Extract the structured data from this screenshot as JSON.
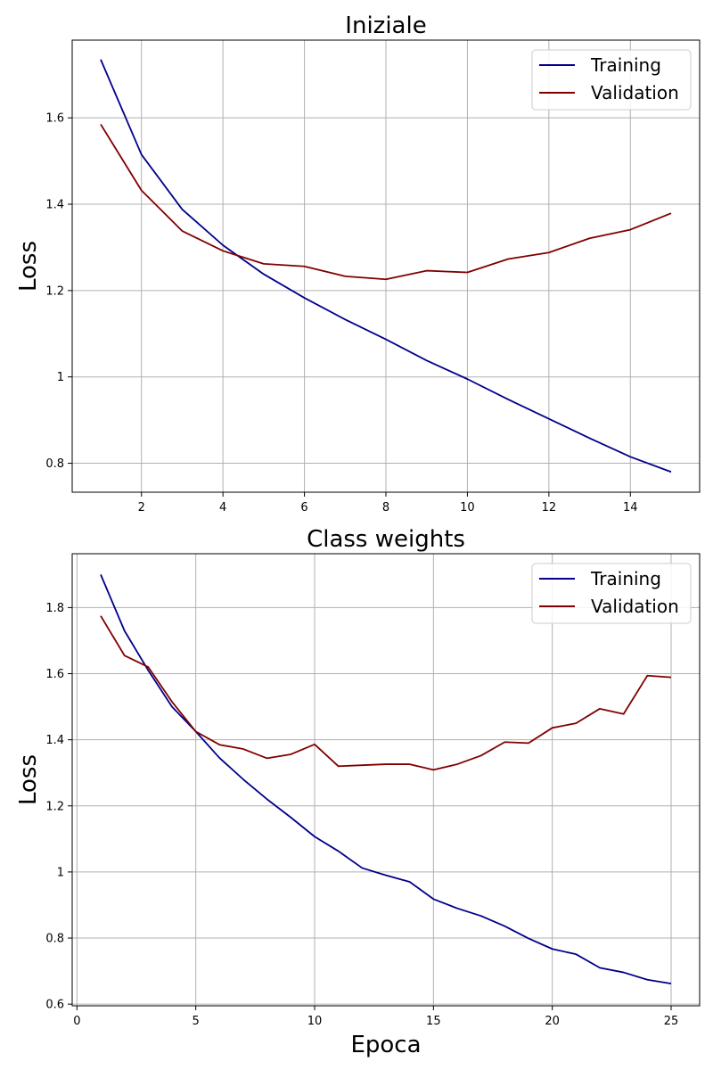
{
  "colors": {
    "training": "#00008b",
    "validation": "#800000",
    "grid": "#b0b0b0",
    "frame": "#000000"
  },
  "chart_data": [
    {
      "type": "line",
      "title": "Iniziale",
      "xlabel": "",
      "ylabel": "Loss",
      "xlim": [
        0.3,
        15.7
      ],
      "ylim": [
        0.733,
        1.78
      ],
      "xticks": [
        2,
        4,
        6,
        8,
        10,
        12,
        14
      ],
      "yticks": [
        0.8,
        1.0,
        1.2,
        1.4,
        1.6
      ],
      "grid": true,
      "legend": "top-right",
      "series": [
        {
          "name": "Training",
          "color": "#00008b",
          "x": [
            1,
            2,
            3,
            4,
            5,
            6,
            7,
            8,
            9,
            10,
            11,
            12,
            13,
            14,
            15
          ],
          "y": [
            1.735,
            1.515,
            1.388,
            1.305,
            1.238,
            1.183,
            1.133,
            1.087,
            1.038,
            0.995,
            0.948,
            0.903,
            0.858,
            0.815,
            0.78
          ]
        },
        {
          "name": "Validation",
          "color": "#800000",
          "x": [
            1,
            2,
            3,
            4,
            5,
            6,
            7,
            8,
            9,
            10,
            11,
            12,
            13,
            14,
            15
          ],
          "y": [
            1.585,
            1.432,
            1.338,
            1.292,
            1.262,
            1.256,
            1.233,
            1.226,
            1.246,
            1.242,
            1.273,
            1.288,
            1.321,
            1.341,
            1.379
          ]
        }
      ]
    },
    {
      "type": "line",
      "title": "Class weights",
      "xlabel": "Epoca",
      "ylabel": "Loss",
      "xlim": [
        -0.2,
        26.2
      ],
      "ylim": [
        0.595,
        1.963
      ],
      "xticks": [
        0,
        5,
        10,
        15,
        20,
        25
      ],
      "yticks": [
        0.6,
        0.8,
        1.0,
        1.2,
        1.4,
        1.6,
        1.8
      ],
      "grid": true,
      "legend": "top-right",
      "series": [
        {
          "name": "Training",
          "color": "#00008b",
          "x": [
            1,
            2,
            3,
            4,
            5,
            6,
            7,
            8,
            9,
            10,
            11,
            12,
            13,
            14,
            15,
            16,
            17,
            18,
            19,
            20,
            21,
            22,
            23,
            24,
            25
          ],
          "y": [
            1.9,
            1.73,
            1.61,
            1.5,
            1.425,
            1.345,
            1.28,
            1.22,
            1.165,
            1.107,
            1.063,
            1.012,
            0.99,
            0.97,
            0.918,
            0.89,
            0.867,
            0.836,
            0.799,
            0.767,
            0.751,
            0.71,
            0.696,
            0.674,
            0.662
          ]
        },
        {
          "name": "Validation",
          "color": "#800000",
          "x": [
            1,
            2,
            3,
            4,
            5,
            6,
            7,
            8,
            9,
            10,
            11,
            12,
            13,
            14,
            15,
            16,
            17,
            18,
            19,
            20,
            21,
            22,
            23,
            24,
            25
          ],
          "y": [
            1.775,
            1.655,
            1.62,
            1.515,
            1.425,
            1.385,
            1.372,
            1.344,
            1.356,
            1.386,
            1.32,
            1.323,
            1.326,
            1.326,
            1.309,
            1.326,
            1.352,
            1.393,
            1.39,
            1.436,
            1.45,
            1.494,
            1.478,
            1.594,
            1.589
          ]
        }
      ]
    }
  ]
}
